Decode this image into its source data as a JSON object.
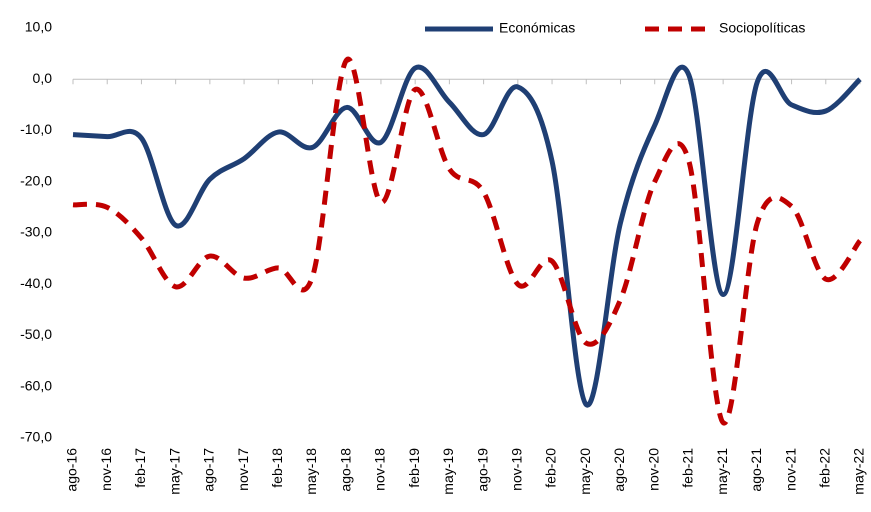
{
  "chart_data": {
    "type": "line",
    "categories": [
      "ago-16",
      "nov-16",
      "feb-17",
      "may-17",
      "ago-17",
      "nov-17",
      "feb-18",
      "may-18",
      "ago-18",
      "nov-18",
      "feb-19",
      "may-19",
      "ago-19",
      "nov-19",
      "feb-20",
      "may-20",
      "ago-20",
      "nov-20",
      "feb-21",
      "may-21",
      "ago-21",
      "nov-21",
      "feb-22",
      "may-22"
    ],
    "series": [
      {
        "name": "Económicas",
        "color": "#1f3f74",
        "dash": false,
        "values": [
          -10.8,
          -11.2,
          -11.5,
          -28.5,
          -19.5,
          -15.5,
          -10.3,
          -13.3,
          -5.5,
          -12.3,
          2.2,
          -4.5,
          -10.8,
          -1.5,
          -16,
          -63.5,
          -28,
          -9,
          0.8,
          -42,
          -0.5,
          -5,
          -6.2,
          0
        ]
      },
      {
        "name": "Sociopolíticas",
        "color": "#c00000",
        "dash": true,
        "values": [
          -24.5,
          -25,
          -31,
          -40.5,
          -34.5,
          -38.8,
          -36.8,
          -38.5,
          3.8,
          -24,
          -2,
          -17.5,
          -22,
          -40,
          -35.5,
          -51.5,
          -43,
          -20,
          -16,
          -67,
          -28,
          -24.8,
          -39,
          -31.5
        ]
      }
    ],
    "ylim": [
      -70,
      10
    ],
    "yticks": [
      {
        "value": -70,
        "label": "-70,0"
      },
      {
        "value": -60,
        "label": "-60,0"
      },
      {
        "value": -50,
        "label": "-50,0"
      },
      {
        "value": -40,
        "label": "-40,0"
      },
      {
        "value": -30,
        "label": "-30,0"
      },
      {
        "value": -20,
        "label": "-20,0"
      },
      {
        "value": -10,
        "label": "-10,0"
      },
      {
        "value": 0,
        "label": "0,0"
      },
      {
        "value": 10,
        "label": "10,0"
      }
    ],
    "legend": "top-right",
    "grid": false
  }
}
